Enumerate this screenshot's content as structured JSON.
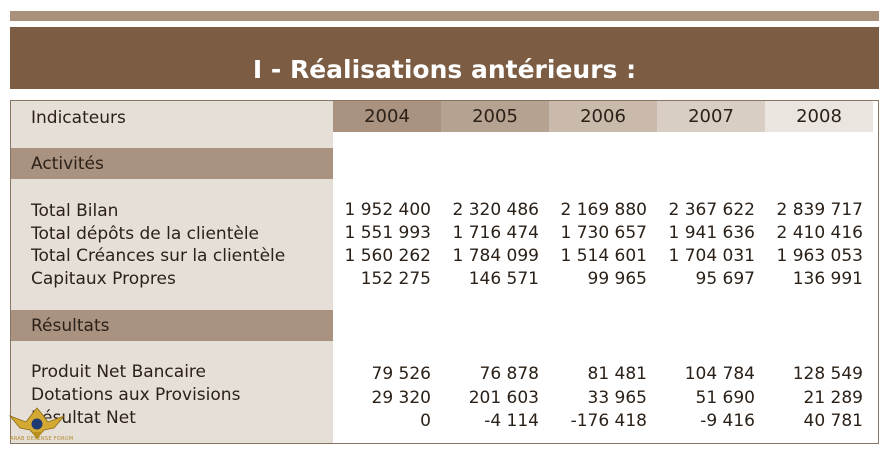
{
  "title": "I - Réalisations antérieurs :",
  "table": {
    "header_label": "Indicateurs",
    "years": [
      "2004",
      "2005",
      "2006",
      "2007",
      "2008"
    ],
    "sections": [
      {
        "name": "Activités",
        "rows": [
          {
            "label": "Total Bilan",
            "values": [
              "1 952 400",
              "2 320 486",
              "2 169 880",
              "2 367 622",
              "2 839 717"
            ]
          },
          {
            "label": "Total dépôts de la clientèle",
            "values": [
              "1 551 993",
              "1 716 474",
              "1 730 657",
              "1 941 636",
              "2 410 416"
            ]
          },
          {
            "label": "Total Créances sur la clientèle",
            "values": [
              "1 560 262",
              "1 784 099",
              "1 514 601",
              "1 704 031",
              "1 963 053"
            ]
          },
          {
            "label": "Capitaux Propres",
            "values": [
              "152 275",
              "146 571",
              "99 965",
              "95 697",
              "136 991"
            ]
          }
        ]
      },
      {
        "name": "Résultats",
        "rows": [
          {
            "label": "Produit Net Bancaire",
            "values": [
              "79 526",
              "76 878",
              "81 481",
              "104 784",
              "128 549"
            ]
          },
          {
            "label": "Dotations aux Provisions",
            "values": [
              "29 320",
              "201 603",
              "33 965",
              "51 690",
              "21 289"
            ]
          },
          {
            "label": "Résultat Net",
            "values": [
              "0",
              "-4 114",
              "-176 418",
              "-9 416",
              "40 781"
            ]
          }
        ]
      }
    ]
  },
  "colors": {
    "title_band": "#7c5c42",
    "top_band": "#a8907b",
    "section_header": "#a99280",
    "label_column": "#e6dfd8",
    "year_2004": "#a99280",
    "year_2005": "#b6a291",
    "year_2006": "#c9baac",
    "year_2007": "#d9cec3",
    "year_2008": "#ebe5df"
  },
  "watermark": {
    "icon": "eagle-emblem-icon",
    "text": "ARAB DEFENSE FORUM"
  }
}
